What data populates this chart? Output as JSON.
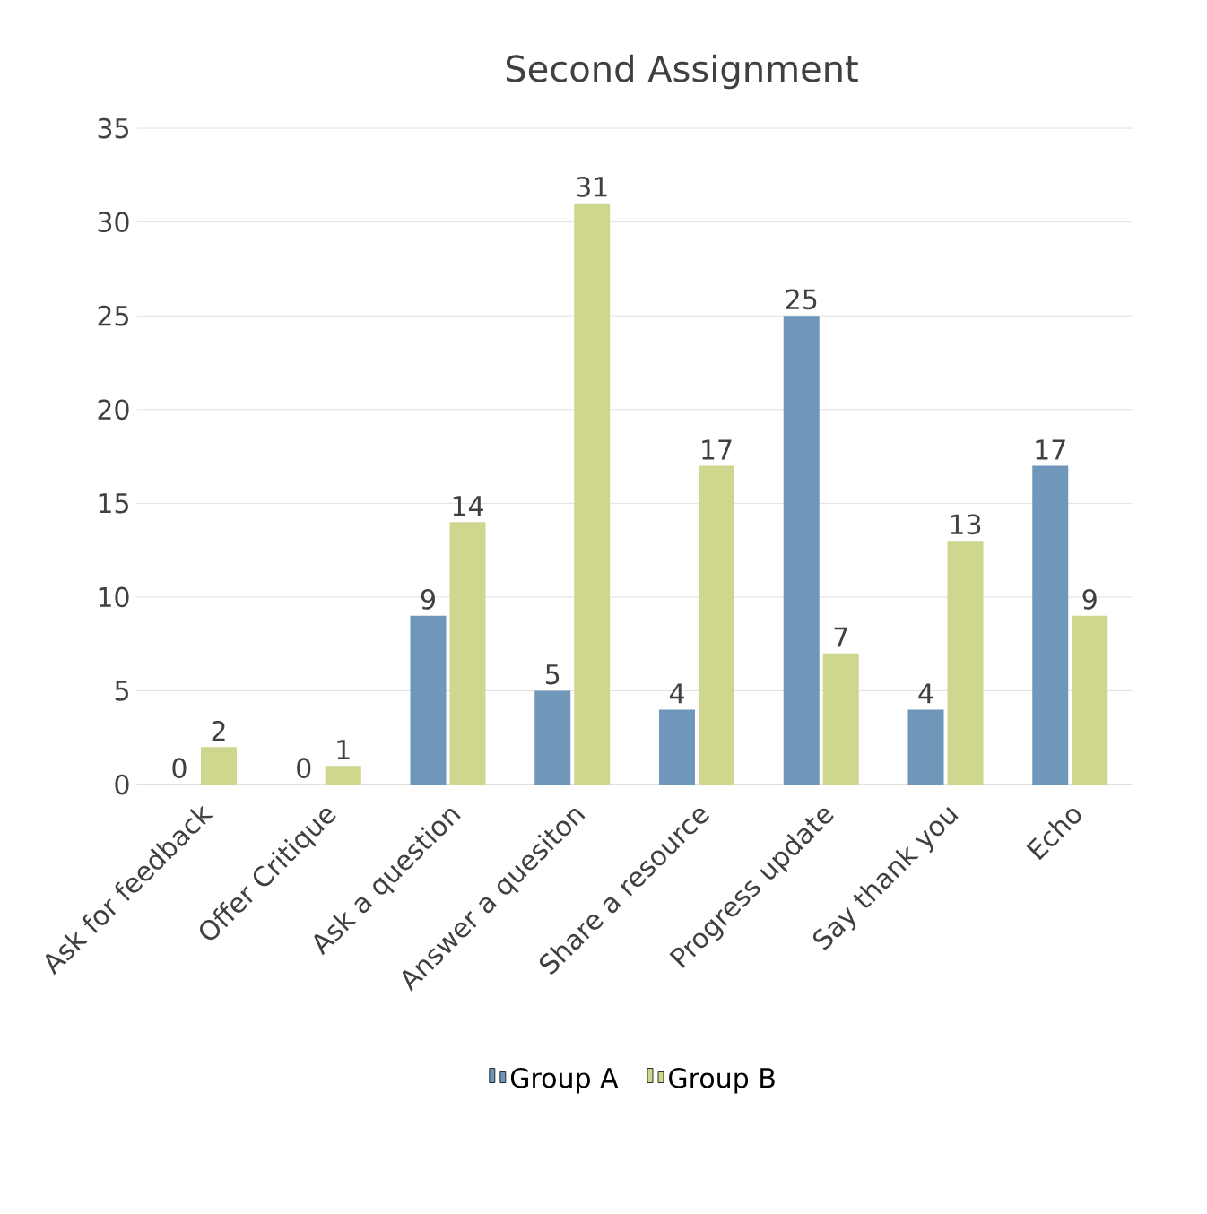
{
  "chart_data": {
    "type": "bar",
    "title": "Second Assignment",
    "categories": [
      "Ask for feedback",
      "Offer Critique",
      "Ask a question",
      "Answer a quesiton",
      "Share a resource",
      "Progress update",
      "Say thank you",
      "Echo"
    ],
    "series": [
      {
        "name": "Group A",
        "color": "#6f97ba",
        "values": [
          0,
          0,
          9,
          5,
          4,
          25,
          4,
          17
        ]
      },
      {
        "name": "Group B",
        "color": "#cfd68e",
        "values": [
          2,
          1,
          14,
          31,
          17,
          7,
          13,
          9
        ]
      }
    ],
    "ylim": [
      0,
      35
    ],
    "yticks": [
      0,
      5,
      10,
      15,
      20,
      25,
      30,
      35
    ],
    "grid": "y",
    "legend": "bottom",
    "data_labels": true
  }
}
